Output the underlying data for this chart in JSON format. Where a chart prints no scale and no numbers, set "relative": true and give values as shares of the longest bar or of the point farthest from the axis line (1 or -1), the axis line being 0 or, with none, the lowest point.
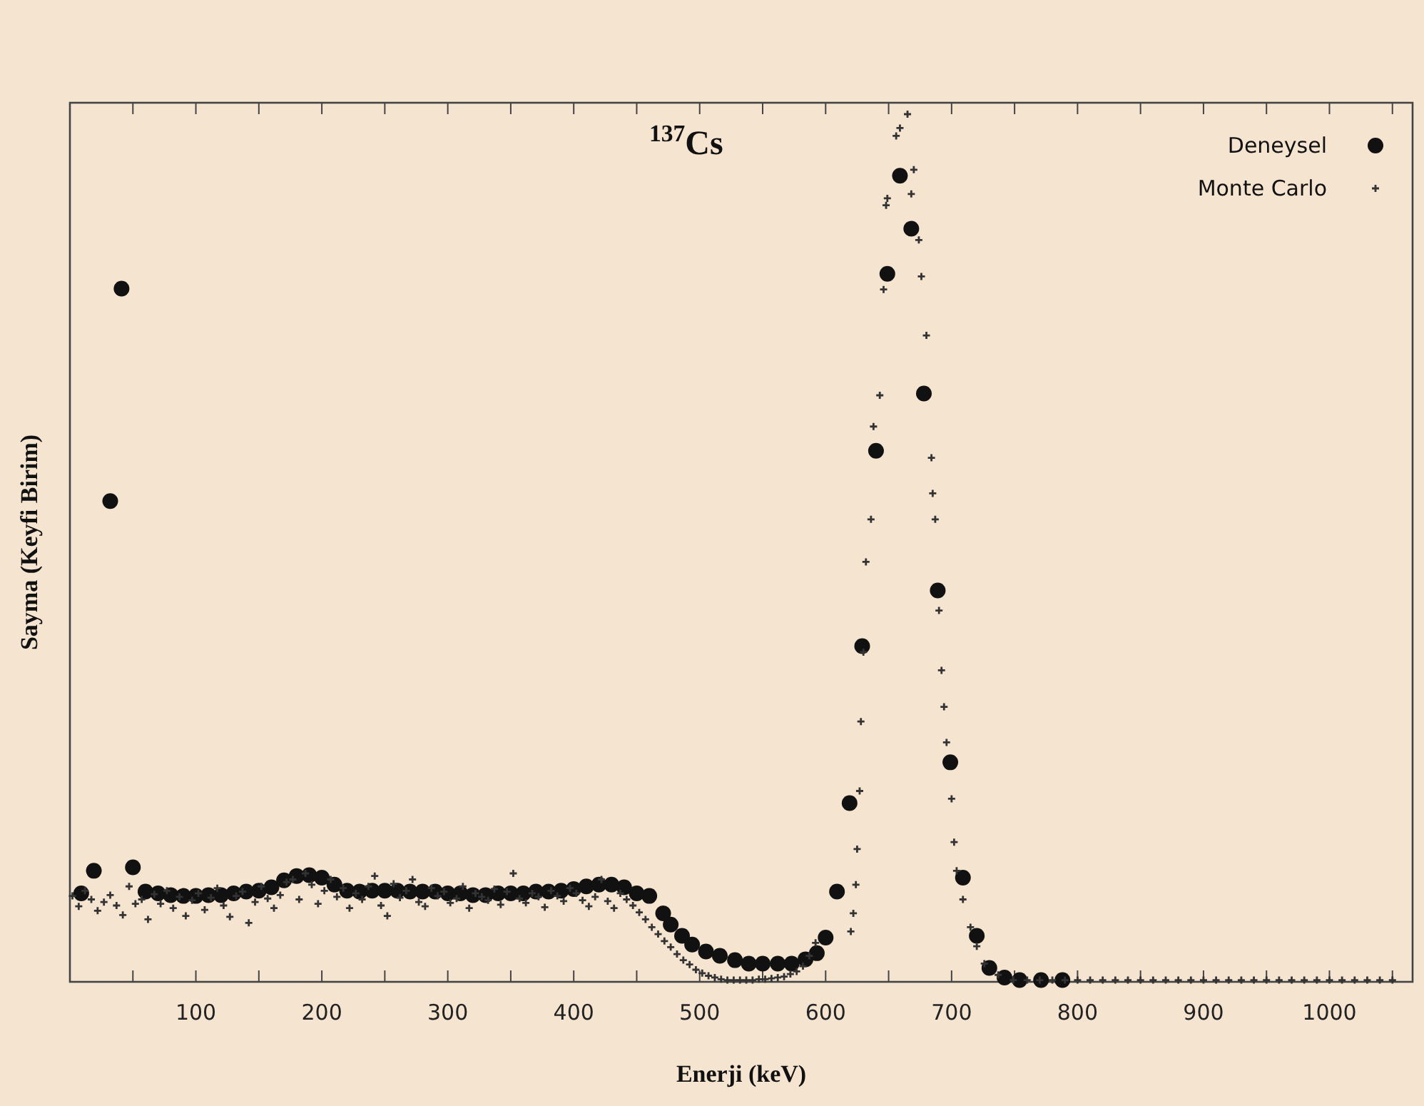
{
  "chart_data": {
    "type": "scatter",
    "title": "$^{137}$Cs",
    "xlabel": "Enerji (keV)",
    "ylabel": "Sayma (Keyfi Birim)",
    "relative": true,
    "xlim": [
      0,
      1066
    ],
    "xticks": [
      {
        "value": 50,
        "label": null
      },
      100,
      {
        "value": 150,
        "label": null
      },
      200,
      {
        "value": 250,
        "label": null
      },
      300,
      {
        "value": 350,
        "label": null
      },
      400,
      {
        "value": 450,
        "label": null
      },
      500,
      {
        "value": 550,
        "label": null
      },
      600,
      {
        "value": 650,
        "label": null
      },
      700,
      {
        "value": 750,
        "label": null
      },
      800,
      {
        "value": 850,
        "label": null
      },
      900,
      {
        "value": 950,
        "label": null
      },
      1000,
      {
        "value": 1050,
        "label": null
      }
    ],
    "grid": false,
    "legend": "top right",
    "series": [
      {
        "name": "Deneysel",
        "color": "#111111",
        "marker": "circle",
        "x": [
          9,
          19,
          32,
          41,
          50,
          60,
          70,
          80,
          90,
          100,
          110,
          120,
          130,
          140,
          150,
          160,
          170,
          180,
          190,
          200,
          210,
          220,
          230,
          240,
          250,
          260,
          270,
          280,
          290,
          300,
          310,
          320,
          330,
          340,
          350,
          360,
          370,
          380,
          390,
          400,
          410,
          420,
          430,
          440,
          450,
          460,
          471,
          477,
          486,
          494,
          505,
          516,
          528,
          539,
          550,
          562,
          573,
          584,
          593,
          600,
          609,
          619,
          629,
          640,
          649,
          659,
          668,
          678,
          689,
          699,
          709,
          720,
          730,
          742,
          754,
          771,
          788
        ],
        "values": [
          0.102,
          0.128,
          0.554,
          0.799,
          0.132,
          0.104,
          0.102,
          0.1,
          0.099,
          0.099,
          0.1,
          0.1,
          0.102,
          0.104,
          0.105,
          0.109,
          0.117,
          0.122,
          0.123,
          0.12,
          0.112,
          0.105,
          0.104,
          0.105,
          0.105,
          0.105,
          0.104,
          0.104,
          0.104,
          0.102,
          0.102,
          0.1,
          0.1,
          0.102,
          0.102,
          0.102,
          0.104,
          0.104,
          0.105,
          0.107,
          0.11,
          0.112,
          0.112,
          0.109,
          0.102,
          0.099,
          0.079,
          0.066,
          0.053,
          0.043,
          0.035,
          0.03,
          0.025,
          0.021,
          0.021,
          0.021,
          0.021,
          0.026,
          0.033,
          0.051,
          0.104,
          0.206,
          0.387,
          0.612,
          0.816,
          0.929,
          0.868,
          0.678,
          0.451,
          0.253,
          0.12,
          0.053,
          0.016,
          0.005,
          0.002,
          0.002,
          0.002
        ]
      },
      {
        "name": "Monte Carlo",
        "color": "#333333",
        "marker": "cross",
        "x": [
          2,
          7,
          12,
          17,
          22,
          27,
          32,
          37,
          42,
          47,
          52,
          57,
          62,
          67,
          72,
          77,
          82,
          87,
          92,
          97,
          102,
          107,
          112,
          117,
          122,
          127,
          132,
          137,
          142,
          147,
          152,
          157,
          162,
          167,
          172,
          177,
          182,
          187,
          192,
          197,
          202,
          207,
          212,
          217,
          222,
          227,
          232,
          237,
          242,
          247,
          252,
          257,
          262,
          267,
          272,
          277,
          282,
          287,
          292,
          297,
          302,
          307,
          312,
          317,
          322,
          327,
          332,
          337,
          342,
          347,
          352,
          357,
          362,
          367,
          372,
          377,
          382,
          387,
          392,
          397,
          402,
          407,
          412,
          417,
          422,
          427,
          432,
          437,
          442,
          447,
          452,
          457,
          462,
          467,
          472,
          477,
          482,
          487,
          492,
          497,
          502,
          507,
          512,
          517,
          522,
          527,
          532,
          537,
          542,
          547,
          552,
          557,
          562,
          567,
          572,
          577,
          582,
          587,
          592,
          620,
          622,
          624,
          625,
          627,
          628,
          630,
          632,
          636,
          638,
          643,
          646,
          648,
          649,
          656,
          659,
          665,
          668,
          670,
          674,
          676,
          680,
          684,
          685,
          687,
          690,
          692,
          694,
          696,
          700,
          702,
          704,
          709,
          715,
          720,
          726,
          737,
          749,
          760,
          770,
          780,
          790,
          800,
          810,
          820,
          830,
          840,
          850,
          860,
          870,
          880,
          890,
          900,
          910,
          920,
          930,
          940,
          950,
          960,
          970,
          980,
          990,
          1000,
          1010,
          1020,
          1030,
          1040,
          1050
        ],
        "values": [
          0.099,
          0.087,
          0.105,
          0.095,
          0.082,
          0.092,
          0.1,
          0.088,
          0.077,
          0.11,
          0.09,
          0.095,
          0.072,
          0.101,
          0.09,
          0.105,
          0.085,
          0.098,
          0.076,
          0.094,
          0.102,
          0.083,
          0.097,
          0.108,
          0.088,
          0.075,
          0.099,
          0.104,
          0.068,
          0.092,
          0.11,
          0.096,
          0.085,
          0.1,
          0.115,
          0.118,
          0.095,
          0.125,
          0.112,
          0.09,
          0.105,
          0.118,
          0.098,
          0.108,
          0.085,
          0.102,
          0.095,
          0.11,
          0.122,
          0.088,
          0.076,
          0.113,
          0.097,
          0.105,
          0.118,
          0.092,
          0.087,
          0.108,
          0.099,
          0.104,
          0.091,
          0.096,
          0.11,
          0.085,
          0.102,
          0.098,
          0.094,
          0.107,
          0.089,
          0.104,
          0.125,
          0.096,
          0.091,
          0.102,
          0.098,
          0.086,
          0.105,
          0.099,
          0.093,
          0.108,
          0.102,
          0.094,
          0.087,
          0.098,
          0.118,
          0.093,
          0.085,
          0.102,
          0.095,
          0.088,
          0.08,
          0.072,
          0.063,
          0.055,
          0.047,
          0.04,
          0.032,
          0.025,
          0.02,
          0.014,
          0.01,
          0.007,
          0.005,
          0.003,
          0.002,
          0.002,
          0.002,
          0.002,
          0.002,
          0.003,
          0.003,
          0.004,
          0.005,
          0.006,
          0.009,
          0.012,
          0.018,
          0.03,
          0.045,
          0.058,
          0.079,
          0.112,
          0.153,
          0.22,
          0.3,
          0.38,
          0.484,
          0.533,
          0.64,
          0.676,
          0.798,
          0.895,
          0.903,
          0.975,
          0.984,
          1,
          0.908,
          0.936,
          0.855,
          0.813,
          0.745,
          0.604,
          0.563,
          0.533,
          0.428,
          0.359,
          0.317,
          0.276,
          0.211,
          0.161,
          0.128,
          0.095,
          0.063,
          0.041,
          0.021,
          0.008,
          0.002,
          0.002,
          0.002,
          0.002,
          0.002,
          0.002,
          0.002,
          0.002,
          0.002,
          0.002,
          0.002,
          0.002,
          0.002,
          0.002,
          0.002,
          0.002,
          0.002,
          0.002,
          0.002,
          0.002,
          0.002,
          0.002,
          0.002,
          0.002,
          0.002,
          0.002,
          0.002,
          0.002,
          0.002,
          0.002,
          0.002
        ]
      }
    ]
  }
}
